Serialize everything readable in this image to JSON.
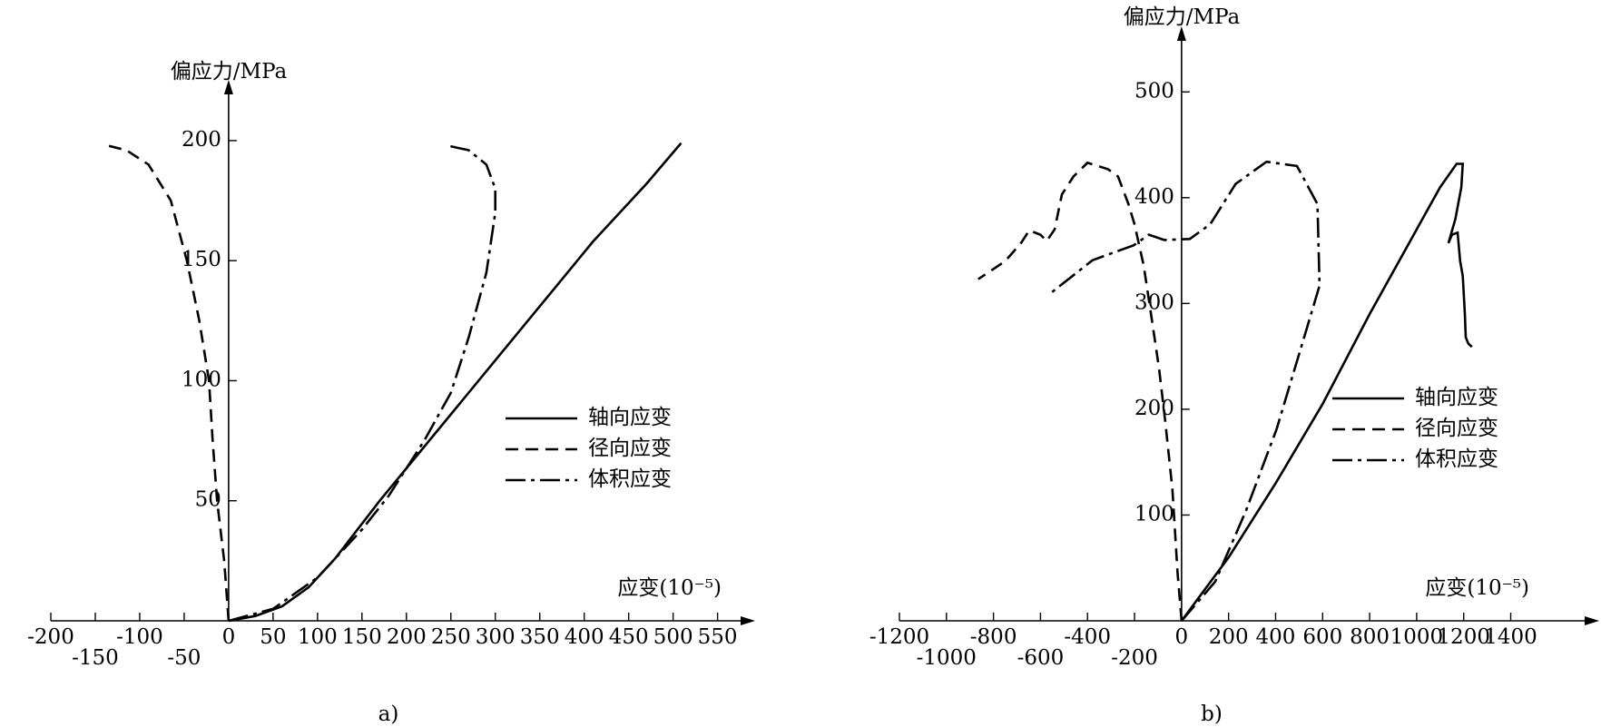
{
  "chart_data": [
    {
      "type": "line",
      "caption": "a)",
      "ylabel": "偏应力/MPa",
      "xlabel": "应变(10⁻⁵)",
      "xlim": [
        -200,
        580
      ],
      "ylim": [
        0,
        220
      ],
      "xticks": [
        -200,
        -150,
        -100,
        -50,
        0,
        50,
        100,
        150,
        200,
        250,
        300,
        350,
        400,
        450,
        500,
        550
      ],
      "yticks": [
        50,
        100,
        150,
        200
      ],
      "legend": "right",
      "series": [
        {
          "name": "轴向应变",
          "color": "#000000",
          "dash": "solid",
          "x": [
            0,
            30,
            60,
            90,
            120,
            170,
            250,
            330,
            410,
            470,
            509
          ],
          "values": [
            0,
            2,
            6,
            14,
            26,
            50,
            86,
            122,
            158,
            182,
            199
          ]
        },
        {
          "name": "径向应变",
          "color": "#000000",
          "dash": "dashed",
          "x": [
            0,
            -5,
            -13,
            -18,
            -22,
            -33,
            -47,
            -65,
            -90,
            -115,
            -137
          ],
          "values": [
            0,
            25,
            50,
            75,
            100,
            125,
            150,
            175,
            190,
            196,
            198
          ]
        },
        {
          "name": "体积应变",
          "color": "#000000",
          "dash": "dashdot",
          "x": [
            0,
            50,
            100,
            150,
            180,
            220,
            250,
            270,
            290,
            300,
            300,
            290,
            270,
            245
          ],
          "values": [
            0,
            5,
            18,
            38,
            52,
            75,
            95,
            118,
            145,
            170,
            180,
            190,
            196,
            198
          ]
        }
      ]
    },
    {
      "type": "line",
      "caption": "b)",
      "ylabel": "偏应力/MPa",
      "xlabel": "应变(10⁻⁵)",
      "xlim": [
        -1200,
        1730
      ],
      "ylim": [
        0,
        550
      ],
      "xticks": [
        -1200,
        -1000,
        -800,
        -600,
        -400,
        -200,
        0,
        200,
        400,
        600,
        800,
        1000,
        1200,
        1400
      ],
      "yticks": [
        100,
        200,
        300,
        400,
        500
      ],
      "legend": "right",
      "series": [
        {
          "name": "轴向应变",
          "color": "#000000",
          "dash": "solid",
          "x": [
            0,
            200,
            400,
            600,
            800,
            1000,
            1100,
            1170,
            1196,
            1190,
            1165,
            1135,
            1150,
            1174,
            1185,
            1196,
            1205,
            1209,
            1220,
            1235
          ],
          "values": [
            0,
            60,
            130,
            205,
            290,
            370,
            410,
            432,
            432,
            410,
            380,
            357,
            365,
            367,
            340,
            326,
            290,
            268,
            262,
            259
          ]
        },
        {
          "name": "径向应变",
          "color": "#000000",
          "dash": "dashed",
          "x": [
            0,
            -17,
            -39,
            -70,
            -96,
            -130,
            -161,
            -200,
            -226,
            -270,
            -313,
            -400,
            -460,
            -509,
            -540,
            -574,
            -600,
            -648,
            -683,
            -750,
            -865
          ],
          "values": [
            0,
            46,
            124,
            190,
            239,
            290,
            336,
            375,
            394,
            420,
            427,
            433,
            420,
            403,
            370,
            359,
            365,
            369,
            357,
            340,
            323
          ]
        },
        {
          "name": "体积应变",
          "color": "#000000",
          "dash": "dashdot",
          "x": [
            0,
            143,
            274,
            404,
            535,
            587,
            578,
            491,
            361,
            230,
            122,
            35,
            -74,
            -139,
            -204,
            -378,
            -561
          ],
          "values": [
            0,
            37,
            104,
            181,
            278,
            317,
            394,
            430,
            434,
            413,
            375,
            361,
            360,
            365,
            355,
            341,
            309
          ]
        }
      ]
    }
  ]
}
